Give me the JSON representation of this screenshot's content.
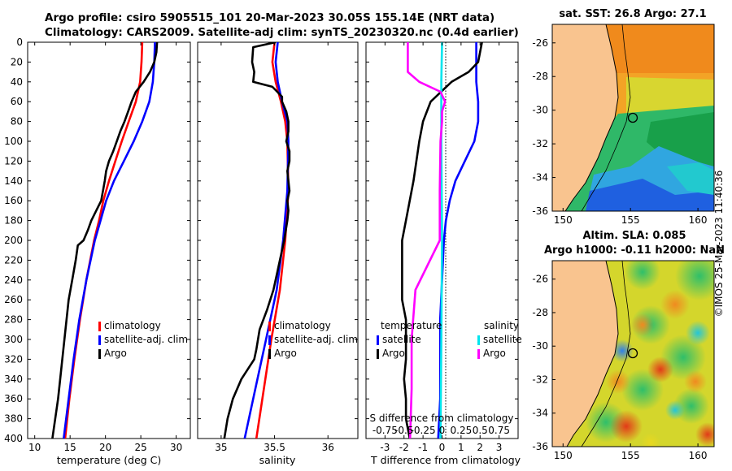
{
  "header": {
    "line1": "Argo profile: csiro 5905515_101 20-Mar-2023 30.05S 155.14E (NRT data)",
    "line2": "Climatology: CARS2009. Satellite-adj clim: synTS_20230320.nc (0.4d earlier)"
  },
  "watermark": "©IMOS 25-Mar-2023 11:40:36",
  "colors": {
    "clim": "#ff0000",
    "sat": "#0000ff",
    "argo": "#000000",
    "sat_s": "#00e5ee",
    "argo_s": "#ff00ff",
    "land": "#f9c48f"
  },
  "depth_axis": {
    "ticks": [
      0,
      20,
      40,
      60,
      80,
      100,
      120,
      140,
      160,
      180,
      200,
      220,
      240,
      260,
      280,
      300,
      320,
      340,
      360,
      380,
      400
    ]
  },
  "chart_data": [
    {
      "type": "line",
      "title": "",
      "xlabel": "temperature (deg C)",
      "ylabel": "",
      "xlim": [
        9,
        32
      ],
      "ylim": [
        400,
        0
      ],
      "xticks": [
        10,
        15,
        20,
        25,
        30
      ],
      "series": [
        {
          "name": "climatology",
          "color_key": "clim",
          "depth": [
            0,
            20,
            40,
            60,
            80,
            100,
            120,
            140,
            160,
            180,
            200,
            240,
            280,
            320,
            360,
            400
          ],
          "values": [
            25.2,
            25.1,
            24.9,
            24.3,
            23.3,
            22.3,
            21.4,
            20.5,
            19.7,
            19.1,
            18.4,
            17.3,
            16.4,
            15.6,
            14.9,
            14.3
          ]
        },
        {
          "name": "satellite-adj. clim",
          "color_key": "sat",
          "depth": [
            0,
            20,
            40,
            60,
            80,
            100,
            120,
            140,
            160,
            180,
            200,
            240,
            280,
            320,
            360,
            400
          ],
          "values": [
            27.0,
            26.9,
            26.7,
            26.2,
            25.2,
            24.0,
            22.6,
            21.2,
            20.1,
            19.3,
            18.5,
            17.3,
            16.3,
            15.5,
            14.8,
            14.1
          ]
        },
        {
          "name": "Argo",
          "color_key": "argo",
          "depth": [
            0,
            10,
            20,
            30,
            40,
            50,
            60,
            70,
            80,
            90,
            100,
            110,
            120,
            130,
            140,
            160,
            170,
            180,
            190,
            200,
            205,
            220,
            240,
            260,
            280,
            300,
            320,
            340,
            360,
            380,
            400
          ],
          "values": [
            27.3,
            27.2,
            26.9,
            26.3,
            25.4,
            24.3,
            23.7,
            23.2,
            22.7,
            22.1,
            21.6,
            21.1,
            20.5,
            20.1,
            19.9,
            19.4,
            18.7,
            18.0,
            17.5,
            16.9,
            16.1,
            15.8,
            15.3,
            14.8,
            14.5,
            14.2,
            13.9,
            13.6,
            13.3,
            12.9,
            12.5
          ]
        }
      ],
      "legend": [
        "climatology",
        "satellite-adj. clim",
        "Argo"
      ],
      "legend_loc": "lower-right"
    },
    {
      "type": "line",
      "title": "",
      "xlabel": "salinity",
      "ylabel": "",
      "xlim": [
        34.78,
        36.28
      ],
      "ylim": [
        400,
        0
      ],
      "xticks": [
        35,
        35.5,
        36
      ],
      "xticklabels": [
        "35",
        "35.5",
        "36"
      ],
      "series": [
        {
          "name": "climatology",
          "color_key": "clim",
          "depth": [
            0,
            20,
            40,
            60,
            80,
            100,
            150,
            200,
            250,
            300,
            350,
            400
          ],
          "values": [
            35.5,
            35.48,
            35.51,
            35.56,
            35.6,
            35.62,
            35.63,
            35.6,
            35.55,
            35.47,
            35.4,
            35.33
          ]
        },
        {
          "name": "satellite-adj. clim",
          "color_key": "sat",
          "depth": [
            0,
            20,
            40,
            60,
            80,
            100,
            150,
            200,
            250,
            300,
            350,
            400
          ],
          "values": [
            35.53,
            35.51,
            35.53,
            35.57,
            35.62,
            35.63,
            35.62,
            35.58,
            35.52,
            35.42,
            35.32,
            35.22
          ]
        },
        {
          "name": "Argo",
          "color_key": "argo",
          "depth": [
            0,
            5,
            20,
            30,
            40,
            45,
            55,
            60,
            70,
            80,
            90,
            100,
            110,
            120,
            130,
            140,
            150,
            160,
            170,
            180,
            200,
            230,
            250,
            270,
            290,
            310,
            320,
            340,
            360,
            380,
            400
          ],
          "values": [
            35.51,
            35.3,
            35.29,
            35.31,
            35.3,
            35.48,
            35.57,
            35.57,
            35.61,
            35.63,
            35.63,
            35.61,
            35.64,
            35.64,
            35.62,
            35.63,
            35.64,
            35.62,
            35.63,
            35.62,
            35.59,
            35.53,
            35.49,
            35.43,
            35.36,
            35.33,
            35.31,
            35.19,
            35.11,
            35.06,
            35.03
          ]
        }
      ],
      "legend": [
        "climatology",
        "satellite-adj. clim",
        "Argo"
      ],
      "legend_loc": "lower-right"
    },
    {
      "type": "line",
      "title": "",
      "xlabel": "T difference from climatology",
      "ylabel": "",
      "xlim": [
        -4,
        4
      ],
      "ylim": [
        400,
        0
      ],
      "xticks": [
        -3,
        -2,
        -1,
        0,
        1,
        2,
        3
      ],
      "xticklabels": [
        "-3",
        "-2",
        "-1",
        "0",
        "1",
        "2",
        "3"
      ],
      "s_axis_label": "S difference from climatology",
      "s_ticklabels": [
        "-0.75",
        "-0.5",
        "-0.25",
        "0",
        "0.25",
        "0.5",
        "0.75"
      ],
      "series": [
        {
          "name": "temperature satellite",
          "color_key": "sat",
          "depth": [
            0,
            20,
            40,
            60,
            80,
            100,
            120,
            140,
            160,
            180,
            200,
            240,
            280,
            320,
            360,
            400
          ],
          "values": [
            1.8,
            1.8,
            1.8,
            1.9,
            1.9,
            1.7,
            1.2,
            0.7,
            0.4,
            0.2,
            0.1,
            0.0,
            -0.1,
            -0.1,
            -0.1,
            -0.2
          ]
        },
        {
          "name": "temperature Argo",
          "color_key": "argo",
          "depth": [
            0,
            20,
            30,
            40,
            60,
            80,
            100,
            140,
            180,
            200,
            220,
            260,
            280,
            300,
            320,
            340,
            360,
            380,
            400
          ],
          "values": [
            2.1,
            1.9,
            1.4,
            0.5,
            -0.6,
            -1.0,
            -1.2,
            -1.5,
            -1.9,
            -2.1,
            -2.1,
            -2.1,
            -1.9,
            -1.9,
            -1.9,
            -2.0,
            -1.9,
            -1.9,
            -1.7
          ]
        },
        {
          "name": "salinity satellite",
          "color_key": "sat_s",
          "depth": [
            0,
            40,
            100,
            200,
            300,
            400
          ],
          "values": [
            0.0,
            -0.01,
            -0.01,
            0.0,
            -0.01,
            -0.02
          ]
        },
        {
          "name": "salinity Argo",
          "color_key": "argo_s",
          "depth": [
            0,
            20,
            30,
            40,
            50,
            60,
            70,
            80,
            100,
            150,
            200,
            250,
            300,
            350,
            400
          ],
          "values": [
            -0.45,
            -0.45,
            -0.45,
            -0.3,
            -0.02,
            0.04,
            0.0,
            0.0,
            -0.02,
            -0.03,
            -0.03,
            -0.35,
            -0.4,
            -0.4,
            -0.42
          ]
        }
      ],
      "legend_temperature": {
        "title": "temperature",
        "entries": [
          "satellite",
          "Argo"
        ]
      },
      "legend_salinity": {
        "title": "salinity",
        "entries": [
          "satellite",
          "Argo"
        ]
      }
    }
  ],
  "maps": [
    {
      "title": "sat. SST: 26.8 Argo: 27.1",
      "xticks": [
        150,
        155,
        160
      ],
      "yticks": [
        -26,
        -28,
        -30,
        -32,
        -34,
        -36
      ],
      "float_lon": 155.14,
      "float_lat": -30.05
    },
    {
      "title_line1": "Altim. SLA: 0.085",
      "title_line2": "Argo h1000: -0.11 h2000: NaN",
      "xticks": [
        150,
        155,
        160
      ],
      "yticks": [
        -26,
        -28,
        -30,
        -32,
        -34,
        -36
      ],
      "float_lon": 155.14,
      "float_lat": -30.05
    }
  ]
}
